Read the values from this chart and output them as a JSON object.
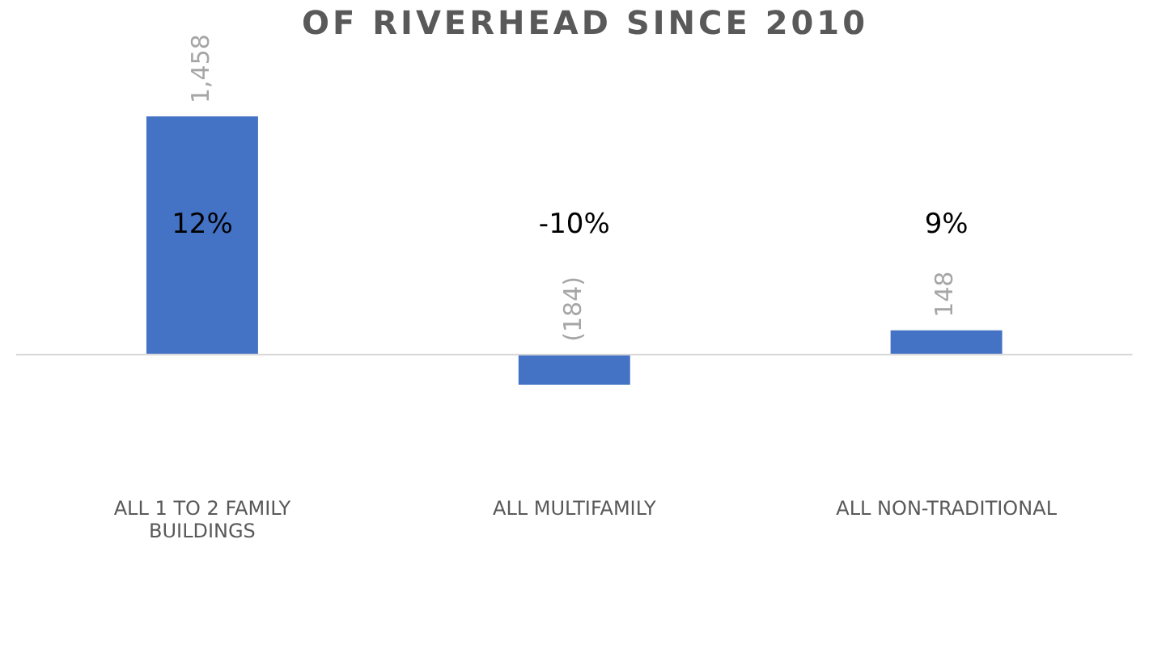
{
  "chart_data": {
    "type": "bar",
    "title": "OF RIVERHEAD SINCE 2010",
    "categories": [
      "ALL 1 TO 2 FAMILY BUILDINGS",
      "ALL MULTIFAMILY",
      "ALL NON-TRADITIONAL"
    ],
    "values": [
      1458,
      -184,
      148
    ],
    "color": "#4472c4",
    "value_labels": [
      "1,458",
      "(184)",
      "148"
    ],
    "annotations": [
      "12%",
      "-10%",
      "9%"
    ],
    "grid": false,
    "legend": false
  }
}
